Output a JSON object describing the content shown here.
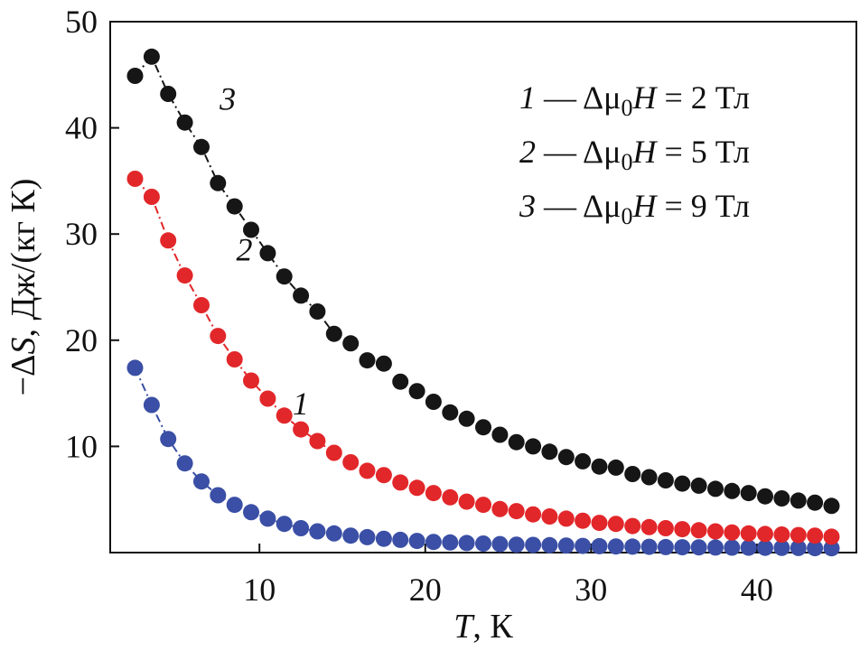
{
  "chart_data": {
    "type": "scatter",
    "xlabel": {
      "var": "T",
      "unit": ", К"
    },
    "ylabel": {
      "prefix": "−Δ",
      "var": "S",
      "unit": ", Дж/(кг К)"
    },
    "xlim": [
      1,
      46
    ],
    "ylim": [
      0,
      50
    ],
    "xticks": [
      10,
      20,
      30,
      40
    ],
    "yticks": [
      10,
      20,
      30,
      40,
      50
    ],
    "grid": false,
    "legend_position": "top-right",
    "legend": [
      {
        "num": "1",
        "dash": " — ",
        "delta": "Δμ",
        "sub": "0",
        "h": "H",
        "rest": " = 2 Тл"
      },
      {
        "num": "2",
        "dash": " — ",
        "delta": "Δμ",
        "sub": "0",
        "h": "H",
        "rest": " = 5 Тл"
      },
      {
        "num": "3",
        "dash": " — ",
        "delta": "Δμ",
        "sub": "0",
        "h": "H",
        "rest": " = 9 Тл"
      }
    ],
    "series": [
      {
        "label": "1",
        "color": "#3a4fa5",
        "label_at": [
          12,
          13
        ],
        "x": [
          2.5,
          3.5,
          4.5,
          5.5,
          6.5,
          7.5,
          8.5,
          9.5,
          10.5,
          11.5,
          12.5,
          13.5,
          14.5,
          15.5,
          16.5,
          17.5,
          18.5,
          19.5,
          20.5,
          21.5,
          22.5,
          23.5,
          24.5,
          25.5,
          26.5,
          27.5,
          28.5,
          29.5,
          30.5,
          31.5,
          32.5,
          33.5,
          34.5,
          35.5,
          36.5,
          37.5,
          38.5,
          39.5,
          40.5,
          41.5,
          42.5,
          43.5,
          44.5
        ],
        "y": [
          17.4,
          13.9,
          10.7,
          8.4,
          6.7,
          5.4,
          4.5,
          3.8,
          3.2,
          2.7,
          2.3,
          2.0,
          1.8,
          1.6,
          1.45,
          1.3,
          1.2,
          1.1,
          1.0,
          0.95,
          0.9,
          0.85,
          0.8,
          0.75,
          0.72,
          0.7,
          0.66,
          0.63,
          0.6,
          0.58,
          0.56,
          0.54,
          0.52,
          0.5,
          0.49,
          0.48,
          0.47,
          0.46,
          0.45,
          0.44,
          0.43,
          0.42,
          0.41
        ]
      },
      {
        "label": "2",
        "color": "#e2272a",
        "label_at": [
          8.6,
          27.5
        ],
        "x": [
          2.5,
          3.5,
          4.5,
          5.5,
          6.5,
          7.5,
          8.5,
          9.5,
          10.5,
          11.5,
          12.5,
          13.5,
          14.5,
          15.5,
          16.5,
          17.5,
          18.5,
          19.5,
          20.5,
          21.5,
          22.5,
          23.5,
          24.5,
          25.5,
          26.5,
          27.5,
          28.5,
          29.5,
          30.5,
          31.5,
          32.5,
          33.5,
          34.5,
          35.5,
          36.5,
          37.5,
          38.5,
          39.5,
          40.5,
          41.5,
          42.5,
          43.5,
          44.5
        ],
        "y": [
          35.2,
          33.5,
          29.4,
          26.1,
          23.3,
          20.4,
          18.2,
          16.2,
          14.5,
          12.9,
          11.6,
          10.5,
          9.4,
          8.5,
          7.7,
          7.3,
          6.6,
          6.1,
          5.6,
          5.2,
          4.8,
          4.5,
          4.1,
          3.9,
          3.6,
          3.4,
          3.2,
          3.0,
          2.8,
          2.7,
          2.5,
          2.4,
          2.3,
          2.2,
          2.1,
          2.0,
          1.9,
          1.8,
          1.75,
          1.7,
          1.65,
          1.6,
          1.5
        ]
      },
      {
        "label": "3",
        "color": "#161616",
        "label_at": [
          7.6,
          41.7
        ],
        "x": [
          2.5,
          3.5,
          4.5,
          5.5,
          6.5,
          7.5,
          8.5,
          9.5,
          10.5,
          11.5,
          12.5,
          13.5,
          14.5,
          15.5,
          16.5,
          17.5,
          18.5,
          19.5,
          20.5,
          21.5,
          22.5,
          23.5,
          24.5,
          25.5,
          26.5,
          27.5,
          28.5,
          29.5,
          30.5,
          31.5,
          32.5,
          33.5,
          34.5,
          35.5,
          36.5,
          37.5,
          38.5,
          39.5,
          40.5,
          41.5,
          42.5,
          43.5,
          44.5
        ],
        "y": [
          44.9,
          46.7,
          43.2,
          40.5,
          38.2,
          34.8,
          32.6,
          30.4,
          28.2,
          26.0,
          24.2,
          22.7,
          20.6,
          19.7,
          18.1,
          17.8,
          16.1,
          15.2,
          14.2,
          13.2,
          12.6,
          11.8,
          11.1,
          10.4,
          10.0,
          9.5,
          9.0,
          8.6,
          8.1,
          8.0,
          7.4,
          7.1,
          6.8,
          6.5,
          6.3,
          6.0,
          5.8,
          5.6,
          5.3,
          5.1,
          4.9,
          4.7,
          4.4
        ]
      }
    ]
  }
}
